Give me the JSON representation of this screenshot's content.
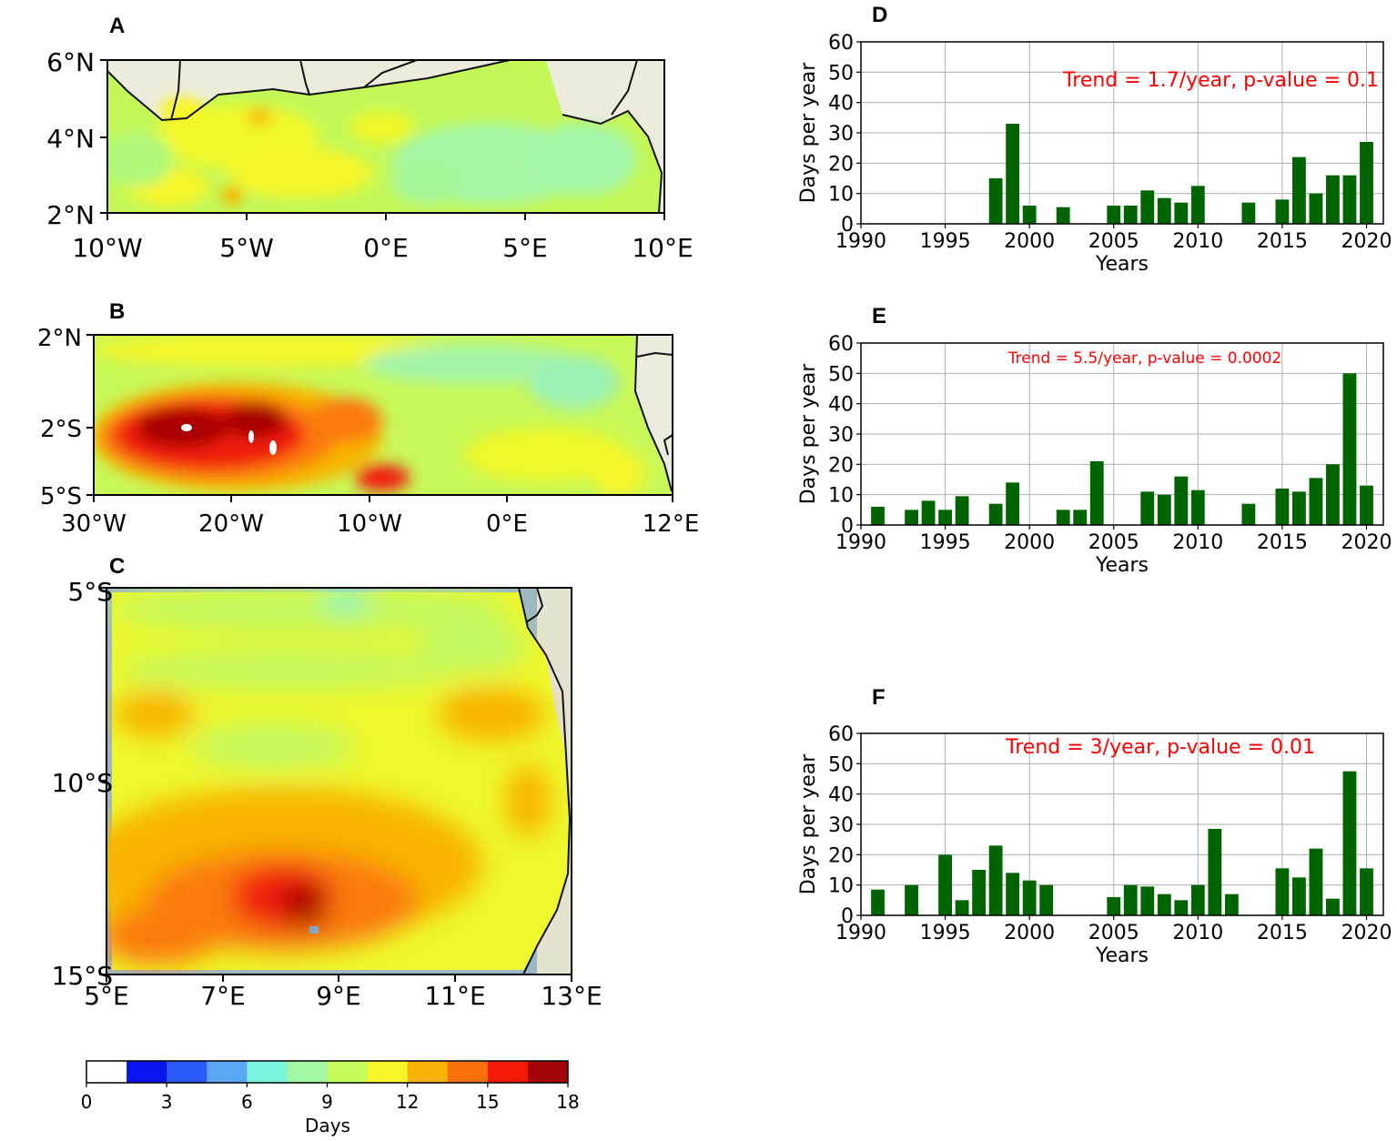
{
  "panels": {
    "A": {
      "letter": "A",
      "lat_labels": [
        "6°N",
        "4°N",
        "2°N"
      ],
      "lon_labels": [
        "10°W",
        "5°W",
        "0°E",
        "5°E",
        "10°E"
      ]
    },
    "B": {
      "letter": "B",
      "lat_labels": [
        "2°N",
        "2°S",
        "5°S"
      ],
      "lon_labels": [
        "30°W",
        "20°W",
        "10°W",
        "0°E",
        "12°E"
      ]
    },
    "C": {
      "letter": "C",
      "lat_labels": [
        "5°S",
        "10°S",
        "15°S"
      ],
      "lon_labels": [
        "5°E",
        "7°E",
        "9°E",
        "11°E",
        "13°E"
      ]
    }
  },
  "colorbar": {
    "label": "Days",
    "ticks": [
      "0",
      "3",
      "6",
      "9",
      "12",
      "15",
      "18"
    ],
    "colors": [
      "#ffffff",
      "#0a14f0",
      "#2a5af8",
      "#5aa8f4",
      "#7af5de",
      "#a4f8a4",
      "#c4fc5c",
      "#f6f62a",
      "#f8b406",
      "#fa700a",
      "#f51a08",
      "#a30408"
    ]
  },
  "palette": {
    "bar": "#006400",
    "trend_text": "#ff0000",
    "land": "#ecebdc",
    "grid": "#b0b0b0"
  },
  "chart_data": [
    {
      "panel": "D",
      "type": "bar",
      "title": "",
      "xlabel": "Years",
      "ylabel": "Days per year",
      "ylim": [
        0,
        60
      ],
      "xlim": [
        1990,
        2021
      ],
      "xticks": [
        "1990",
        "1995",
        "2000",
        "2005",
        "2010",
        "2015",
        "2020"
      ],
      "yticks": [
        "0",
        "10",
        "20",
        "30",
        "40",
        "50",
        "60"
      ],
      "annotation": "Trend = 1.7/year, p-value = 0.1",
      "x": [
        1998,
        1999,
        2000,
        2002,
        2005,
        2006,
        2007,
        2008,
        2009,
        2010,
        2013,
        2015,
        2016,
        2017,
        2018,
        2019,
        2020
      ],
      "values": [
        15,
        33,
        6,
        5.5,
        6,
        6,
        11,
        8.5,
        7,
        12.5,
        7,
        8,
        22,
        10,
        16,
        16,
        27
      ]
    },
    {
      "panel": "E",
      "type": "bar",
      "title": "",
      "xlabel": "Years",
      "ylabel": "Days per year",
      "ylim": [
        0,
        60
      ],
      "xlim": [
        1990,
        2021
      ],
      "xticks": [
        "1990",
        "1995",
        "2000",
        "2005",
        "2010",
        "2015",
        "2020"
      ],
      "yticks": [
        "0",
        "10",
        "20",
        "30",
        "40",
        "50",
        "60"
      ],
      "annotation": "Trend = 5.5/year, p-value = 0.0002",
      "x": [
        1991,
        1993,
        1994,
        1995,
        1996,
        1998,
        1999,
        2002,
        2003,
        2004,
        2007,
        2008,
        2009,
        2010,
        2013,
        2015,
        2016,
        2017,
        2018,
        2019,
        2020
      ],
      "values": [
        6,
        5,
        8,
        5,
        9.5,
        7,
        14,
        5,
        5,
        21,
        11,
        10,
        16,
        11.5,
        7,
        12,
        11,
        15.5,
        20,
        50,
        13
      ]
    },
    {
      "panel": "F",
      "type": "bar",
      "title": "",
      "xlabel": "Years",
      "ylabel": "Days per year",
      "ylim": [
        0,
        60
      ],
      "xlim": [
        1990,
        2021
      ],
      "xticks": [
        "1990",
        "1995",
        "2000",
        "2005",
        "2010",
        "2015",
        "2020"
      ],
      "yticks": [
        "0",
        "10",
        "20",
        "30",
        "40",
        "50",
        "60"
      ],
      "annotation": "Trend = 3/year, p-value = 0.01",
      "x": [
        1991,
        1993,
        1995,
        1996,
        1997,
        1998,
        1999,
        2000,
        2001,
        2005,
        2006,
        2007,
        2008,
        2009,
        2010,
        2011,
        2012,
        2015,
        2016,
        2017,
        2018,
        2019,
        2020
      ],
      "values": [
        8.5,
        10,
        20,
        5,
        15,
        23,
        14,
        11.5,
        10,
        6,
        10,
        9.5,
        7,
        5,
        10,
        28.5,
        7,
        15.5,
        12.5,
        22,
        5.5,
        47.5,
        15.5
      ]
    }
  ]
}
